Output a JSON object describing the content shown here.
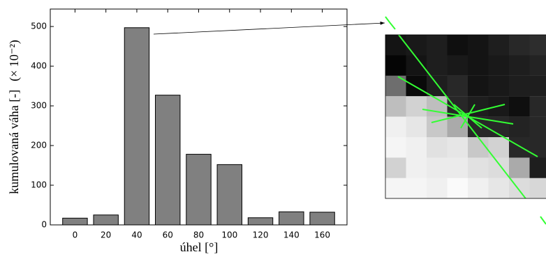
{
  "chart_data": {
    "type": "bar",
    "xlabel": "úhel [°]",
    "ylabel": "kumulovaná váha [-]",
    "scale_label": "(× 10⁻²)",
    "x": [
      0,
      20,
      40,
      60,
      80,
      100,
      120,
      140,
      160
    ],
    "values": [
      17,
      25,
      497,
      327,
      178,
      152,
      18,
      33,
      32
    ],
    "color": "#808080",
    "xlim": [
      -16,
      176
    ],
    "xticks": [
      0,
      20,
      40,
      60,
      80,
      100,
      120,
      140,
      160
    ],
    "ylim": [
      0,
      544
    ],
    "yticks": [
      0,
      100,
      200,
      300,
      400,
      500
    ],
    "grid": false
  }
}
